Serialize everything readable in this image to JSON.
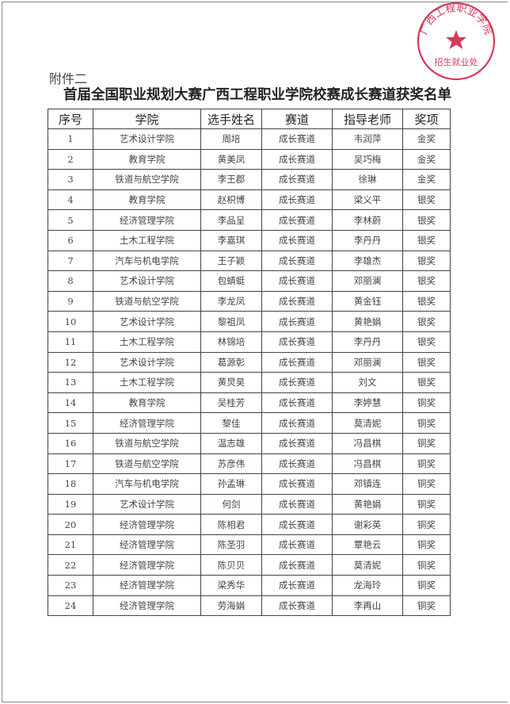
{
  "attachment_label": "附件二",
  "title": "首届全国职业规划大赛广西工程职业学院校赛成长赛道获奖名单",
  "table": {
    "headers": [
      "序号",
      "学院",
      "选手姓名",
      "赛道",
      "指导老师",
      "奖项"
    ],
    "rows": [
      [
        "1",
        "艺术设计学院",
        "周培",
        "成长赛道",
        "韦润萍",
        "金奖"
      ],
      [
        "2",
        "教育学院",
        "黄美凤",
        "成长赛道",
        "吴巧梅",
        "金奖"
      ],
      [
        "3",
        "铁道与航空学院",
        "李王郡",
        "成长赛道",
        "徐琳",
        "金奖"
      ],
      [
        "4",
        "教育学院",
        "赵枳博",
        "成长赛道",
        "梁义平",
        "银奖"
      ],
      [
        "5",
        "经济管理学院",
        "李品呈",
        "成长赛道",
        "李林蔚",
        "银奖"
      ],
      [
        "6",
        "土木工程学院",
        "李嘉琪",
        "成长赛道",
        "李丹丹",
        "银奖"
      ],
      [
        "7",
        "汽车与机电学院",
        "王子颖",
        "成长赛道",
        "李雄杰",
        "银奖"
      ],
      [
        "8",
        "艺术设计学院",
        "包蜻蜓",
        "成长赛道",
        "邓丽澜",
        "银奖"
      ],
      [
        "9",
        "铁道与航空学院",
        "李龙凤",
        "成长赛道",
        "黄金钰",
        "银奖"
      ],
      [
        "10",
        "艺术设计学院",
        "黎祖凤",
        "成长赛道",
        "黄艳娟",
        "银奖"
      ],
      [
        "11",
        "土木工程学院",
        "林锦培",
        "成长赛道",
        "李丹丹",
        "银奖"
      ],
      [
        "12",
        "艺术设计学院",
        "葛源彰",
        "成长赛道",
        "邓丽澜",
        "银奖"
      ],
      [
        "13",
        "土木工程学院",
        "黄炅昊",
        "成长赛道",
        "刘文",
        "银奖"
      ],
      [
        "14",
        "教育学院",
        "吴桂芳",
        "成长赛道",
        "李婷慧",
        "铜奖"
      ],
      [
        "15",
        "经济管理学院",
        "黎佳",
        "成长赛道",
        "莫清妮",
        "铜奖"
      ],
      [
        "16",
        "铁道与航空学院",
        "温志雄",
        "成长赛道",
        "冯昌棋",
        "铜奖"
      ],
      [
        "17",
        "铁道与航空学院",
        "苏彦伟",
        "成长赛道",
        "冯昌棋",
        "铜奖"
      ],
      [
        "18",
        "汽车与机电学院",
        "孙孟琳",
        "成长赛道",
        "邓镇连",
        "铜奖"
      ],
      [
        "19",
        "艺术设计学院",
        "何剑",
        "成长赛道",
        "黄艳娟",
        "铜奖"
      ],
      [
        "20",
        "经济管理学院",
        "陈相君",
        "成长赛道",
        "谢彩英",
        "铜奖"
      ],
      [
        "21",
        "经济管理学院",
        "陈圣羽",
        "成长赛道",
        "覃艳云",
        "铜奖"
      ],
      [
        "22",
        "经济管理学院",
        "陈贝贝",
        "成长赛道",
        "莫清妮",
        "铜奖"
      ],
      [
        "23",
        "经济管理学院",
        "梁秀华",
        "成长赛道",
        "龙海玲",
        "铜奖"
      ],
      [
        "24",
        "经济管理学院",
        "劳海娟",
        "成长赛道",
        "李再山",
        "铜奖"
      ]
    ]
  },
  "stamp": {
    "text_arc": "广西工程职业学院",
    "text_bottom": "招生就业处",
    "color": "#d9385a"
  }
}
